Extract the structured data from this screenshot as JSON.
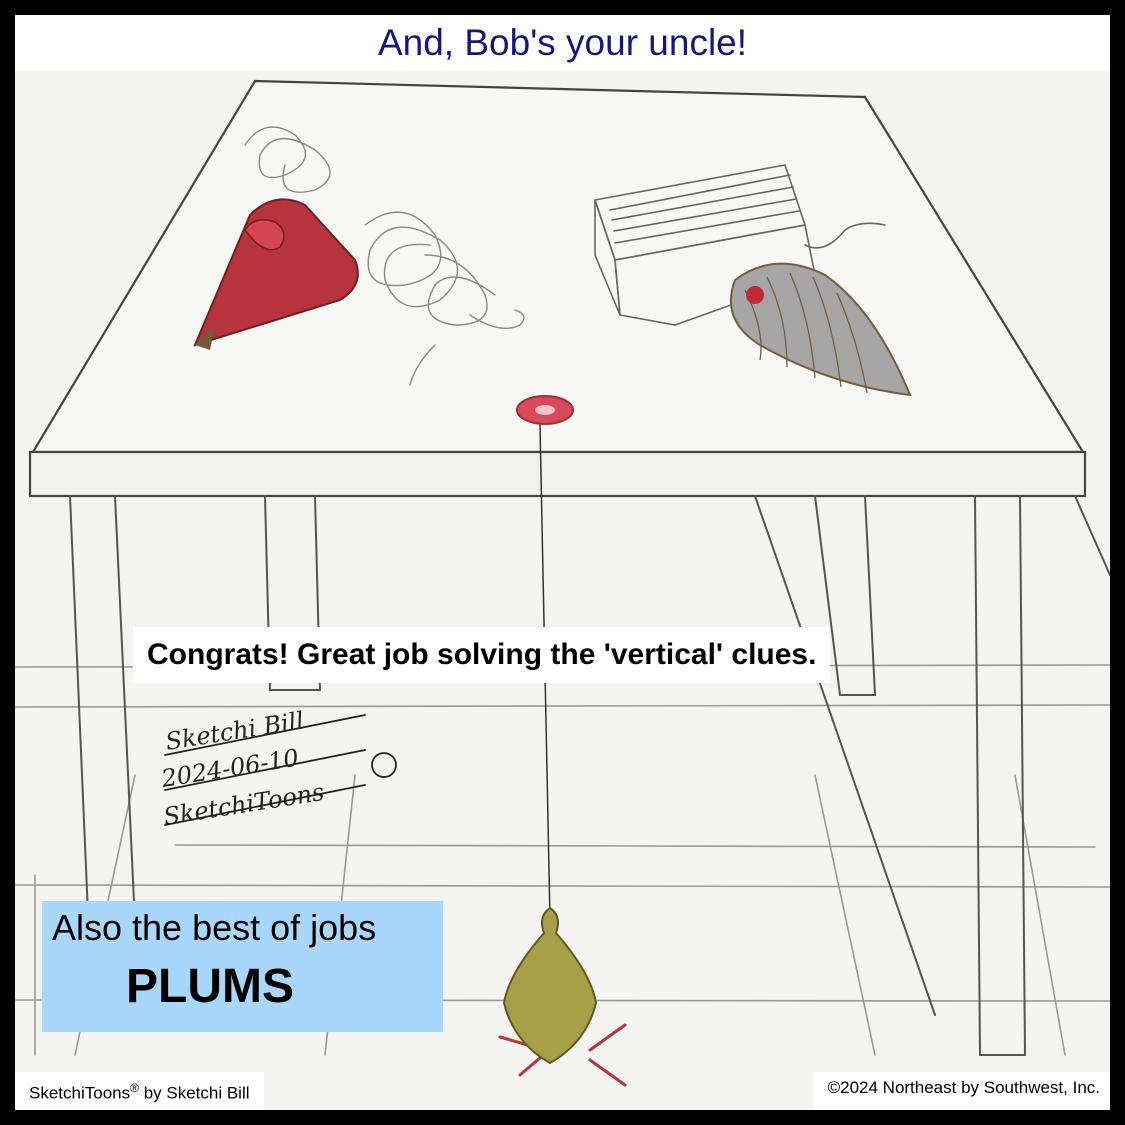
{
  "title": "And, Bob's your uncle!",
  "caption": "Congrats! Great job solving the 'vertical' clues.",
  "answer_box": {
    "line1": "Also the best of jobs",
    "line2": "PLUMS",
    "background": "#a9d6fb"
  },
  "signature": {
    "name": "Sketchi Bill",
    "date": "2024-06-10",
    "brand": "SketchiToons"
  },
  "footer": {
    "brand": "SketchiToons",
    "registered_mark": "®",
    "byline": " by Sketchi Bill",
    "copyright": "©2024 Northeast by Southwest, Inc."
  },
  "colors": {
    "title_text": "#16157a",
    "plumb_red": "#b8343c",
    "plumb_olive": "#a8a048",
    "plumb_gray": "#9a9a9a",
    "pencil": "#444444"
  }
}
